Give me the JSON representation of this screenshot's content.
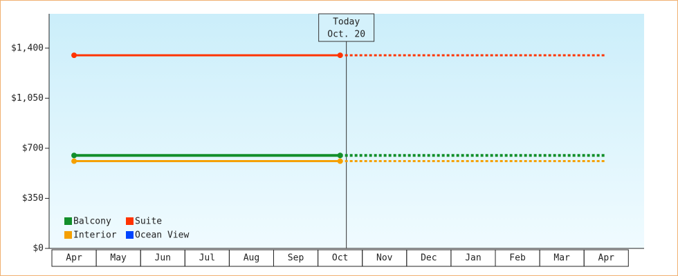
{
  "chart_data": {
    "type": "line",
    "categories": [
      "Apr",
      "May",
      "Jun",
      "Jul",
      "Aug",
      "Sep",
      "Oct",
      "Nov",
      "Dec",
      "Jan",
      "Feb",
      "Mar",
      "Apr"
    ],
    "series": [
      {
        "name": "Balcony",
        "color": "#138f2b",
        "values": [
          650,
          650,
          650,
          650,
          650,
          650,
          650,
          650,
          650,
          650,
          650,
          650,
          650
        ]
      },
      {
        "name": "Suite",
        "color": "#ff3300",
        "values": [
          1350,
          1350,
          1350,
          1350,
          1350,
          1350,
          1350,
          1350,
          1350,
          1350,
          1350,
          1350,
          1350
        ]
      },
      {
        "name": "Interior",
        "color": "#f5a000",
        "values": [
          610,
          610,
          610,
          610,
          610,
          610,
          610,
          610,
          610,
          610,
          610,
          610,
          610
        ]
      },
      {
        "name": "Ocean View",
        "color": "#0044ff",
        "values": [
          null,
          null,
          null,
          null,
          null,
          null,
          null,
          null,
          null,
          null,
          null,
          null,
          null
        ]
      }
    ],
    "annotations": [
      "Today",
      "Oct. 20"
    ],
    "ylim": [
      0,
      1640
    ],
    "yticks": [
      {
        "value": 0,
        "label": "$0"
      },
      {
        "value": 350,
        "label": "$350"
      },
      {
        "value": 700,
        "label": "$700"
      },
      {
        "value": 1050,
        "label": "$1,050"
      },
      {
        "value": 1400,
        "label": "$1,400"
      }
    ]
  }
}
